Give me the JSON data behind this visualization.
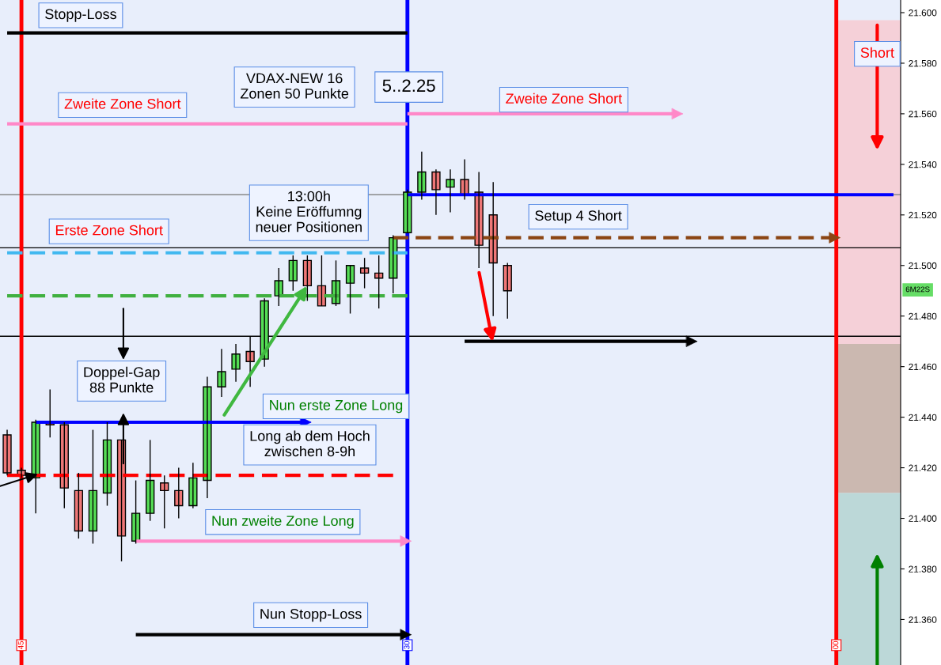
{
  "chart_data": {
    "type": "candlestick",
    "categories": [
      null,
      "45",
      null,
      null,
      null,
      null,
      null,
      null,
      null,
      null,
      null,
      null,
      null,
      null,
      null,
      null,
      null,
      null,
      null,
      null,
      null,
      null,
      null,
      null,
      null,
      null,
      null,
      null,
      "30",
      null,
      null,
      null,
      null,
      null,
      null,
      null,
      null,
      null,
      null,
      null,
      null,
      null,
      null,
      null,
      null,
      null,
      null,
      null,
      null,
      null,
      null,
      null,
      null,
      null,
      null,
      null,
      null,
      null,
      "00",
      null,
      null,
      null,
      null
    ],
    "ohlc": [
      [
        21433,
        21435,
        21417,
        21418
      ],
      [
        21419,
        21420,
        21416,
        21417
      ],
      [
        21416,
        21439,
        21402,
        21438
      ],
      [
        21438,
        21451,
        21432,
        21437
      ],
      [
        21437,
        21438,
        21404,
        21412
      ],
      [
        21411,
        21418,
        21392,
        21395
      ],
      [
        21395,
        21435,
        21390,
        21411
      ],
      [
        21410,
        21438,
        21405,
        21431
      ],
      [
        21431,
        21431,
        21383,
        21393
      ],
      [
        21391,
        21415,
        21390,
        21402
      ],
      [
        21402,
        21431,
        21399,
        21415
      ],
      [
        21414,
        21417,
        21396,
        21411
      ],
      [
        21411,
        21420,
        21400,
        21405
      ],
      [
        21405,
        21422,
        21404,
        21416
      ],
      [
        21415,
        21456,
        21408,
        21452
      ],
      [
        21452,
        21467,
        21448,
        21458
      ],
      [
        21459,
        21469,
        21454,
        21465
      ],
      [
        21466,
        21472,
        21452,
        21462
      ],
      [
        21463,
        21487,
        21460,
        21486
      ],
      [
        21488,
        21499,
        21484,
        21494
      ],
      [
        21494,
        21504,
        21490,
        21502
      ],
      [
        21502,
        21504,
        21486,
        21492
      ],
      [
        21492,
        21504,
        21484,
        21484
      ],
      [
        21485,
        21502,
        21484,
        21494
      ],
      [
        21493,
        21500,
        21481,
        21500
      ],
      [
        21499,
        21503,
        21491,
        21497
      ],
      [
        21497,
        21504,
        21483,
        21495
      ],
      [
        21495,
        21512,
        21489,
        21511
      ],
      [
        21513,
        21530,
        21513,
        21529
      ],
      [
        21529,
        21545,
        21526,
        21537
      ],
      [
        21537,
        21538,
        21520,
        21530
      ],
      [
        21531,
        21538,
        21521,
        21534
      ],
      [
        21534,
        21542,
        21526,
        21528
      ],
      [
        21529,
        21537,
        21499,
        21508
      ],
      [
        21520,
        21533,
        21480,
        21501
      ],
      [
        21500,
        21501,
        21479,
        21490
      ],
      null,
      null,
      null,
      null,
      null,
      null,
      null,
      null,
      null,
      null,
      null,
      null,
      null,
      null,
      null,
      null,
      null,
      null,
      null,
      null,
      null,
      null,
      null,
      null,
      null,
      null,
      null
    ],
    "series": [
      {
        "type": "line",
        "color": "#000000",
        "line_style": "solid",
        "values": [
          21592,
          21592,
          21592,
          21592,
          21592,
          21592,
          21592,
          21592,
          21592,
          21592,
          21592,
          21592,
          21592,
          21592,
          21592,
          21592,
          21592,
          21592,
          21592,
          21592,
          21592,
          21592,
          21592,
          21592,
          21592,
          21592,
          21592,
          21592,
          21592,
          null,
          null,
          null,
          null,
          null,
          null,
          null,
          null,
          null,
          null,
          null,
          null,
          null,
          null,
          null,
          null,
          null,
          null,
          null,
          null,
          null,
          null,
          null,
          null,
          null,
          null,
          null,
          null,
          null,
          null,
          null,
          null,
          null,
          null
        ]
      },
      {
        "type": "line",
        "color": "#ff88c8",
        "line_style": "solid",
        "values": [
          21556,
          21556,
          21556,
          21556,
          21556,
          21556,
          21556,
          21556,
          21556,
          21556,
          21556,
          21556,
          21556,
          21556,
          21556,
          21556,
          21556,
          21556,
          21556,
          21556,
          21556,
          21556,
          21556,
          21556,
          21556,
          21556,
          21556,
          21556,
          21556,
          null,
          null,
          null,
          null,
          null,
          null,
          null,
          null,
          null,
          null,
          null,
          null,
          null,
          null,
          null,
          null,
          null,
          null,
          null,
          null,
          null,
          null,
          null,
          null,
          null,
          null,
          null,
          null,
          null,
          null,
          null,
          null,
          null,
          null
        ]
      },
      {
        "type": "line",
        "color": "#ff88c8",
        "line_style": "solid",
        "values": [
          null,
          null,
          null,
          null,
          null,
          null,
          null,
          null,
          null,
          null,
          null,
          null,
          null,
          null,
          null,
          null,
          null,
          null,
          null,
          null,
          null,
          null,
          null,
          null,
          null,
          null,
          null,
          null,
          21560,
          21560,
          21560,
          21560,
          21560,
          21560,
          21560,
          21560,
          21560,
          21560,
          21560,
          21560,
          21560,
          21560,
          21560,
          21560,
          21560,
          21560,
          21560,
          21560,
          null,
          null,
          null,
          null,
          null,
          null,
          null,
          null,
          null,
          null,
          null,
          null,
          null,
          null,
          null
        ]
      },
      {
        "type": "line",
        "color": "#40b8f0",
        "line_style": "dashed",
        "values": [
          21505,
          21505,
          21505,
          21505,
          21505,
          21505,
          21505,
          21505,
          21505,
          21505,
          21505,
          21505,
          21505,
          21505,
          21505,
          21505,
          21505,
          21505,
          21505,
          21505,
          21505,
          21505,
          21505,
          21505,
          21505,
          21505,
          21505,
          21505,
          21505,
          null,
          null,
          null,
          null,
          null,
          null,
          null,
          null,
          null,
          null,
          null,
          null,
          null,
          null,
          null,
          null,
          null,
          null,
          null,
          null,
          null,
          null,
          null,
          null,
          null,
          null,
          null,
          null,
          null,
          null,
          null,
          null,
          null,
          null
        ]
      },
      {
        "type": "line",
        "color": "#40b040",
        "line_style": "dashed",
        "values": [
          21488,
          21488,
          21488,
          21488,
          21488,
          21488,
          21488,
          21488,
          21488,
          21488,
          21488,
          21488,
          21488,
          21488,
          21488,
          21488,
          21488,
          21488,
          21488,
          21488,
          21488,
          21488,
          21488,
          21488,
          21488,
          21488,
          21488,
          21488,
          21488,
          null,
          null,
          null,
          null,
          null,
          null,
          null,
          null,
          null,
          null,
          null,
          null,
          null,
          null,
          null,
          null,
          null,
          null,
          null,
          null,
          null,
          null,
          null,
          null,
          null,
          null,
          null,
          null,
          null,
          null,
          null,
          null,
          null,
          null
        ]
      },
      {
        "type": "line",
        "color": "#8b4513",
        "line_style": "dashed",
        "values": [
          null,
          null,
          null,
          null,
          null,
          null,
          null,
          null,
          null,
          null,
          null,
          null,
          null,
          null,
          null,
          null,
          null,
          null,
          null,
          null,
          null,
          null,
          null,
          null,
          null,
          null,
          null,
          21511,
          21511,
          21511,
          21511,
          21511,
          21511,
          21511,
          21511,
          21511,
          21511,
          21511,
          21511,
          21511,
          21511,
          21511,
          21511,
          21511,
          21511,
          21511,
          21511,
          21511,
          21511,
          21511,
          21511,
          21511,
          21511,
          21511,
          21511,
          21511,
          21511,
          21511,
          21511,
          null,
          null,
          null,
          null
        ]
      },
      {
        "type": "line",
        "color": "#ff0000",
        "line_style": "dashed",
        "values": [
          21417,
          21417,
          21417,
          21417,
          21417,
          21417,
          21417,
          21417,
          21417,
          21417,
          21417,
          21417,
          21417,
          21417,
          21417,
          21417,
          21417,
          21417,
          21417,
          21417,
          21417,
          21417,
          21417,
          21417,
          21417,
          21417,
          21417,
          21417,
          null,
          null,
          null,
          null,
          null,
          null,
          null,
          null,
          null,
          null,
          null,
          null,
          null,
          null,
          null,
          null,
          null,
          null,
          null,
          null,
          null,
          null,
          null,
          null,
          null,
          null,
          null,
          null,
          null,
          null,
          null,
          null,
          null,
          null,
          null
        ]
      },
      {
        "type": "line",
        "color": "#0000ff",
        "line_style": "solid",
        "values": [
          null,
          null,
          21438,
          21438,
          21438,
          21438,
          21438,
          21438,
          21438,
          21438,
          21438,
          21438,
          21438,
          21438,
          21438,
          21438,
          21438,
          21438,
          21438,
          21438,
          21438,
          21438,
          null,
          null,
          null,
          null,
          null,
          null,
          null,
          null,
          null,
          null,
          null,
          null,
          null,
          null,
          null,
          null,
          null,
          null,
          null,
          null,
          null,
          null,
          null,
          null,
          null,
          null,
          null,
          null,
          null,
          null,
          null,
          null,
          null,
          null,
          null,
          null,
          null,
          null,
          null,
          null,
          null
        ]
      },
      {
        "type": "line",
        "color": "#ff88c8",
        "line_style": "solid",
        "values": [
          null,
          null,
          null,
          null,
          null,
          null,
          null,
          null,
          null,
          21391,
          21391,
          21391,
          21391,
          21391,
          21391,
          21391,
          21391,
          21391,
          21391,
          21391,
          21391,
          21391,
          21391,
          21391,
          21391,
          21391,
          21391,
          21391,
          21391,
          null,
          null,
          null,
          null,
          null,
          null,
          null,
          null,
          null,
          null,
          null,
          null,
          null,
          null,
          null,
          null,
          null,
          null,
          null,
          null,
          null,
          null,
          null,
          null,
          null,
          null,
          null,
          null,
          null,
          null,
          null,
          null,
          null,
          null
        ]
      },
      {
        "type": "line",
        "color": "#000000",
        "line_style": "solid",
        "values": [
          null,
          null,
          null,
          null,
          null,
          null,
          null,
          null,
          null,
          21354,
          21354,
          21354,
          21354,
          21354,
          21354,
          21354,
          21354,
          21354,
          21354,
          21354,
          21354,
          21354,
          21354,
          21354,
          21354,
          21354,
          21354,
          21354,
          21354,
          null,
          null,
          null,
          null,
          null,
          null,
          null,
          null,
          null,
          null,
          null,
          null,
          null,
          null,
          null,
          null,
          null,
          null,
          null,
          null,
          null,
          null,
          null,
          null,
          null,
          null,
          null,
          null,
          null,
          null,
          null,
          null,
          null,
          null
        ]
      },
      {
        "type": "line",
        "color": "#000000",
        "line_style": "solid",
        "values": [
          null,
          null,
          null,
          null,
          null,
          null,
          null,
          null,
          null,
          null,
          null,
          null,
          null,
          null,
          null,
          null,
          null,
          null,
          null,
          null,
          null,
          null,
          null,
          null,
          null,
          null,
          null,
          null,
          null,
          null,
          null,
          null,
          21470,
          21470,
          21470,
          21470,
          21470,
          21470,
          21470,
          21470,
          21470,
          21470,
          21470,
          21470,
          21470,
          21470,
          21470,
          21470,
          21470,
          null,
          null,
          null,
          null,
          null,
          null,
          null,
          null,
          null,
          null,
          null,
          null,
          null,
          null
        ]
      },
      {
        "type": "line",
        "color": "#0000ff",
        "line_style": "solid",
        "values": [
          null,
          null,
          null,
          null,
          null,
          null,
          null,
          null,
          null,
          null,
          null,
          null,
          null,
          null,
          null,
          null,
          null,
          null,
          null,
          null,
          null,
          null,
          null,
          null,
          null,
          null,
          null,
          null,
          21528,
          21528,
          21528,
          21528,
          21528,
          21528,
          21528,
          21528,
          21528,
          21528,
          21528,
          21528,
          21528,
          21528,
          21528,
          21528,
          21528,
          21528,
          21528,
          21528,
          21528,
          21528,
          21528,
          21528,
          21528,
          21528,
          21528,
          21528,
          21528,
          21528,
          21528,
          21528,
          21528,
          21528,
          21528
        ]
      }
    ],
    "ref_lines": [
      {
        "axis": "y",
        "value": 21528,
        "color": "#888888"
      },
      {
        "axis": "y",
        "value": 21507,
        "color": "#000000"
      },
      {
        "axis": "y",
        "value": 21472,
        "color": "#000000"
      },
      {
        "axis": "x",
        "value": "45",
        "color": "#ff0000"
      },
      {
        "axis": "x",
        "value": "30",
        "color": "#0000ff"
      },
      {
        "axis": "x",
        "value": "00",
        "color": "#ff0000"
      }
    ],
    "bands": [
      {
        "axis": "y",
        "from": 21469,
        "to": 21597,
        "color": "#f5d0d8"
      },
      {
        "axis": "y",
        "from": 21410,
        "to": 21469,
        "color": "#cbb8b0"
      },
      {
        "axis": "y",
        "from": 21342,
        "to": 21410,
        "color": "#bcd8d8"
      }
    ],
    "annotations": [
      "Stopp-Loss",
      "VDAX-NEW 16\nZonen 50 Punkte",
      "5..2.25",
      "Zweite Zone Short",
      "Zweite Zone Short",
      "Short",
      "13:00h\nKeine Eröffumng\nneuer Positionen",
      "Setup 4 Short",
      "Erste Zone Short",
      "Doppel-Gap\n88 Punkte",
      "Nun erste Zone Long",
      "Long ab dem Hoch\nzwischen 8-9h",
      "Nun zweite Zone Long",
      "Nun Stopp-Loss",
      "6M22S"
    ],
    "ylim": [
      21342,
      21605
    ],
    "yticks": [
      {
        "value": 21360,
        "label": "21.360"
      },
      {
        "value": 21380,
        "label": "21.380"
      },
      {
        "value": 21400,
        "label": "21.400"
      },
      {
        "value": 21420,
        "label": "21.420"
      },
      {
        "value": 21440,
        "label": "21.440"
      },
      {
        "value": 21460,
        "label": "21.460"
      },
      {
        "value": 21480,
        "label": "21.480"
      },
      {
        "value": 21500,
        "label": "21.500"
      },
      {
        "value": 21520,
        "label": "21.520"
      },
      {
        "value": 21540,
        "label": "21.540"
      },
      {
        "value": 21560,
        "label": "21.560"
      },
      {
        "value": 21580,
        "label": "21.580"
      },
      {
        "value": 21600,
        "label": "21.600"
      }
    ]
  }
}
